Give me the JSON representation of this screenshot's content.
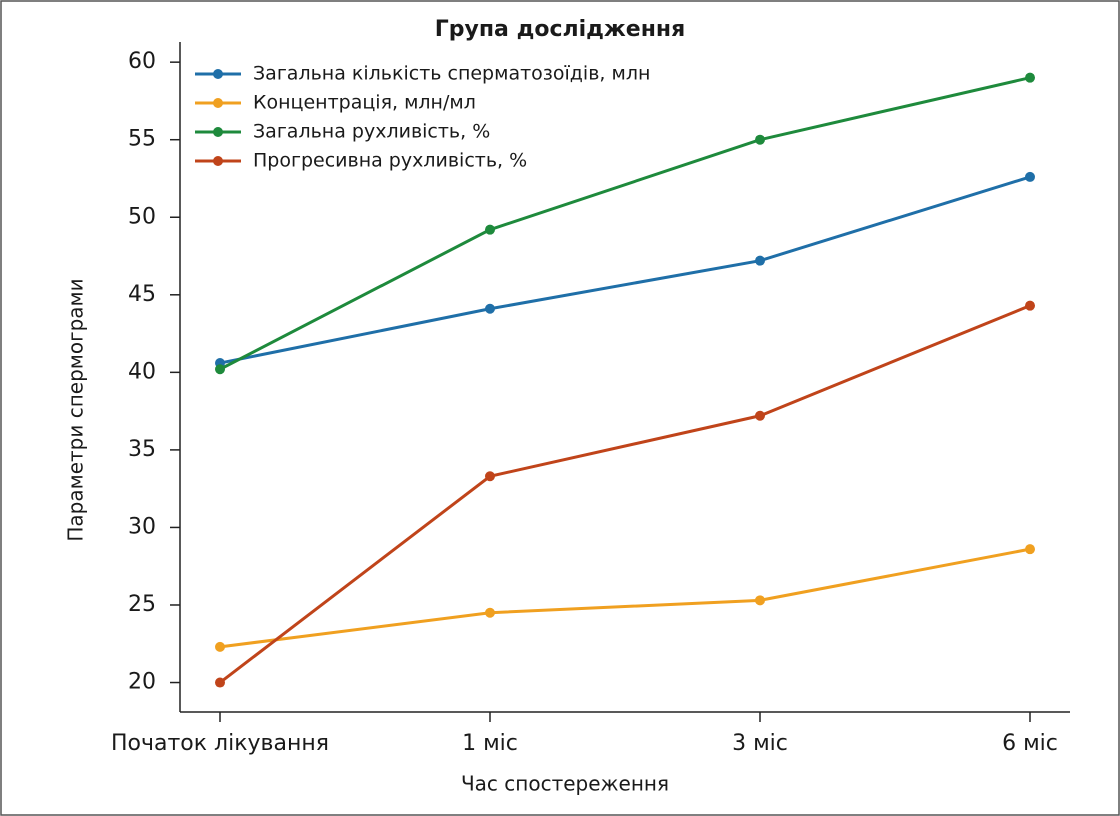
{
  "chart_data": {
    "type": "line",
    "title": "Група дослідження",
    "x_label": "Час спостереження",
    "y_label": "Параметри спермограми",
    "categories": [
      "Початок лікування",
      "1 міс",
      "3 міс",
      "6 міс"
    ],
    "series": [
      {
        "name": "Загальна кількість сперматозоїдів, млн",
        "color": "#1f6fa8",
        "values": [
          40.6,
          44.1,
          47.2,
          52.6
        ]
      },
      {
        "name": "Концентрація, млн/мл",
        "color": "#f0a020",
        "values": [
          22.3,
          24.5,
          25.3,
          28.6
        ]
      },
      {
        "name": "Загальна рухливість, %",
        "color": "#1e8a3c",
        "values": [
          40.2,
          49.2,
          55.0,
          59.0
        ]
      },
      {
        "name": "Прогресивна рухливість, %",
        "color": "#c0441a",
        "values": [
          20.0,
          33.3,
          37.2,
          44.3
        ]
      }
    ],
    "ylim": [
      18.1,
      61.3
    ],
    "yticks": [
      20,
      25,
      30,
      35,
      40,
      45,
      50,
      55,
      60
    ],
    "legend": "upper left",
    "grid": false
  }
}
